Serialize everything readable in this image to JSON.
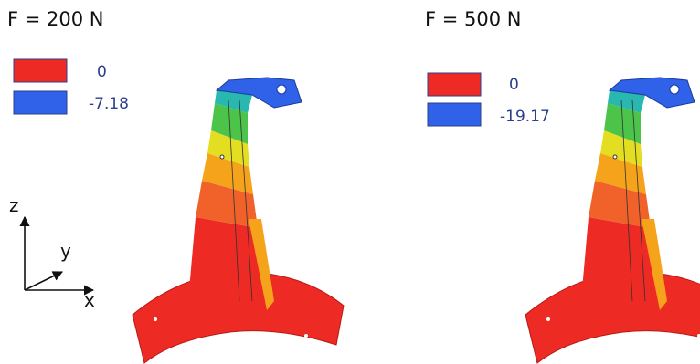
{
  "panels": [
    {
      "title": "F = 200 N",
      "legend": [
        {
          "label": "0",
          "color": "#ee2a24"
        },
        {
          "label": "-7.18",
          "color": "#2f62e8"
        }
      ]
    },
    {
      "title": "F = 500 N",
      "legend": [
        {
          "label": "0",
          "color": "#ee2a24"
        },
        {
          "label": "-19.17",
          "color": "#2f62e8"
        }
      ]
    }
  ],
  "axes": {
    "z": "z",
    "y": "y",
    "x": "x"
  }
}
